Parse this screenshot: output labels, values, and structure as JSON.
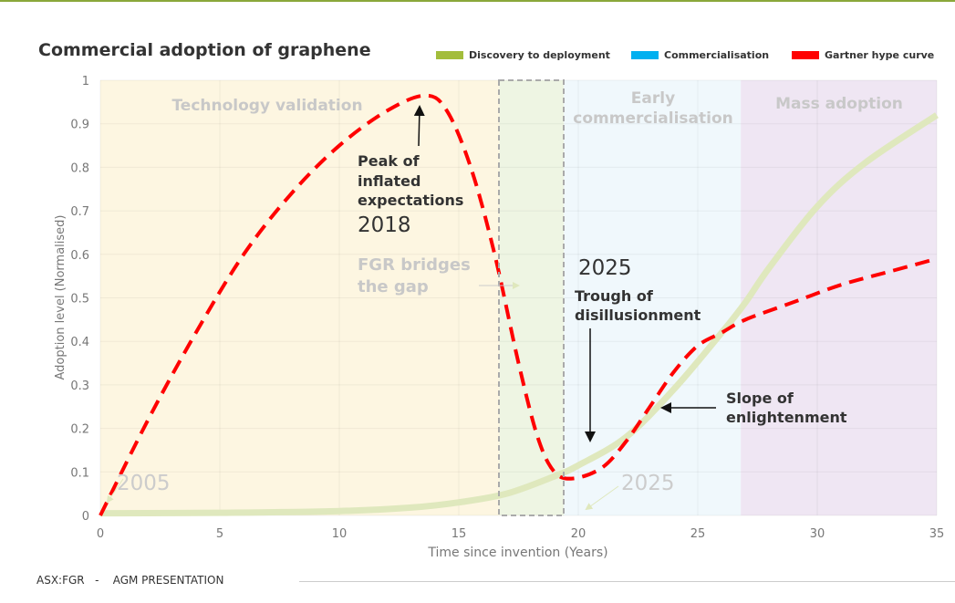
{
  "chart_data": {
    "type": "line",
    "title": "Commercial adoption of graphene",
    "xlabel": "Time since invention (Years)",
    "ylabel": "Adoption level (Normalised)",
    "xlim": [
      0,
      35
    ],
    "ylim": [
      0,
      1
    ],
    "xticks": [
      0,
      5,
      10,
      15,
      20,
      25,
      30,
      35
    ],
    "yticks": [
      0,
      0.1,
      0.2,
      0.3,
      0.4,
      0.5,
      0.6,
      0.7,
      0.8,
      0.9,
      1
    ],
    "grid": true,
    "legend_position": "top-right",
    "legend": [
      {
        "label": "Discovery to deployment",
        "color": "#a3bd3b"
      },
      {
        "label": "Commercialisation",
        "color": "#00b0f0"
      },
      {
        "label": "Gartner hype curve",
        "color": "#ff0000"
      }
    ],
    "phases": [
      {
        "label": "Technology validation",
        "x": [
          0,
          16.7
        ],
        "color": "#fdf6e1"
      },
      {
        "label": "",
        "x": [
          16.7,
          19.4
        ],
        "color": "#eef5e3"
      },
      {
        "label": "Early commercialisation",
        "x": [
          19.4,
          26.8
        ],
        "color": "#f0f8fc"
      },
      {
        "label": "Mass adoption",
        "x": [
          26.8,
          35
        ],
        "color": "#efe6f3"
      }
    ],
    "series": [
      {
        "name": "Discovery to deployment",
        "color": "#dfe8bd",
        "style": "solid",
        "x": [
          0,
          5,
          10,
          13,
          15,
          17,
          19,
          20,
          22,
          24,
          26,
          27,
          28,
          30,
          32,
          35
        ],
        "y": [
          0.005,
          0.006,
          0.01,
          0.018,
          0.03,
          0.05,
          0.09,
          0.115,
          0.18,
          0.29,
          0.42,
          0.49,
          0.57,
          0.71,
          0.81,
          0.92
        ]
      },
      {
        "name": "Gartner hype curve",
        "color": "#ff0000",
        "style": "dashed",
        "x": [
          0,
          2,
          4,
          6,
          8,
          10,
          12,
          13.6,
          14.5,
          15.5,
          16.5,
          17.5,
          18.3,
          19,
          19.8,
          21,
          22,
          23,
          24,
          25,
          26,
          27,
          29,
          31,
          33,
          35
        ],
        "y": [
          0,
          0.22,
          0.42,
          0.6,
          0.74,
          0.85,
          0.93,
          0.965,
          0.93,
          0.8,
          0.6,
          0.35,
          0.18,
          0.1,
          0.085,
          0.11,
          0.17,
          0.25,
          0.33,
          0.39,
          0.42,
          0.45,
          0.49,
          0.53,
          0.56,
          0.59
        ]
      }
    ],
    "annotations": [
      {
        "text": "Peak of inflated expectations",
        "year": "2018"
      },
      {
        "text": "FGR bridges the gap"
      },
      {
        "text": "Trough of disillusionment",
        "year": "2025"
      },
      {
        "text": "Slope of enlightenment"
      },
      {
        "text": "2005"
      },
      {
        "text": "2025"
      }
    ]
  },
  "footer": {
    "ticker": "ASX:FGR",
    "sep": "-",
    "label": "AGM PRESENTATION"
  }
}
